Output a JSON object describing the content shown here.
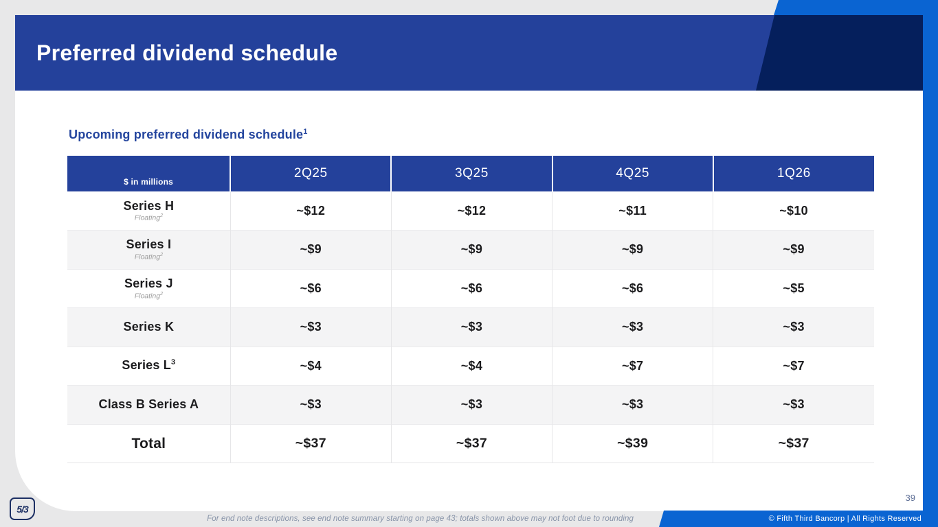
{
  "slide": {
    "title": "Preferred dividend schedule",
    "page_number": "39"
  },
  "subtitle": {
    "text": "Upcoming preferred dividend schedule",
    "sup": "1"
  },
  "table": {
    "unit_label": "$ in millions",
    "columns": [
      "2Q25",
      "3Q25",
      "4Q25",
      "1Q26"
    ],
    "rows": [
      {
        "label": "Series H",
        "note": "Floating",
        "note_sup": "2",
        "values": [
          "~$12",
          "~$12",
          "~$11",
          "~$10"
        ]
      },
      {
        "label": "Series I",
        "note": "Floating",
        "note_sup": "2",
        "values": [
          "~$9",
          "~$9",
          "~$9",
          "~$9"
        ]
      },
      {
        "label": "Series J",
        "note": "Floating",
        "note_sup": "2",
        "values": [
          "~$6",
          "~$6",
          "~$6",
          "~$5"
        ]
      },
      {
        "label": "Series K",
        "values": [
          "~$3",
          "~$3",
          "~$3",
          "~$3"
        ]
      },
      {
        "label": "Series L",
        "sup": "3",
        "values": [
          "~$4",
          "~$4",
          "~$7",
          "~$7"
        ]
      },
      {
        "label": "Class B Series A",
        "values": [
          "~$3",
          "~$3",
          "~$3",
          "~$3"
        ]
      }
    ],
    "total": {
      "label": "Total",
      "values": [
        "~$37",
        "~$37",
        "~$39",
        "~$37"
      ]
    }
  },
  "footer": {
    "note": "For end note descriptions, see end note summary starting on page 43; totals shown above may not foot due to rounding",
    "copyright": "© Fifth Third Bancorp | All Rights Reserved"
  },
  "logo": {
    "text": "5/3"
  },
  "colors": {
    "header_blue": "#24419b",
    "dark_navy": "#051f5c",
    "bright_blue": "#0a64d2",
    "page_gray": "#e8e8e9",
    "alt_row_gray": "#f4f4f5",
    "subtitle_blue": "#24459e",
    "footnote_gray_blue": "#8793a8",
    "text_dark": "#1c1c1e"
  }
}
